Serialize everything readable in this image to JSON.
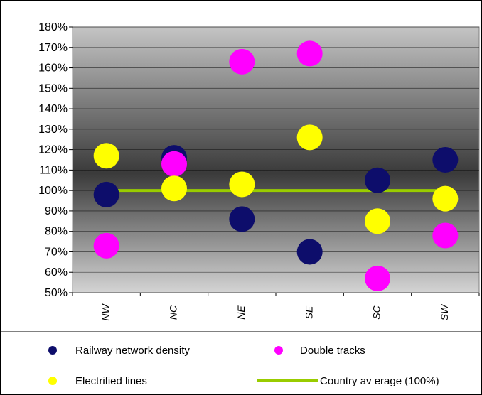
{
  "colors": {
    "railway": "#0d0d6b",
    "double": "#ff00ff",
    "electrified": "#ffff00",
    "average": "#99cc00"
  },
  "chart_data": {
    "type": "scatter",
    "title": "",
    "xlabel": "",
    "ylabel": "",
    "categories": [
      "NW",
      "NC",
      "NE",
      "SE",
      "SC",
      "SW"
    ],
    "y_tick_labels": [
      "50%",
      "60%",
      "70%",
      "80%",
      "90%",
      "100%",
      "110%",
      "120%",
      "130%",
      "140%",
      "150%",
      "160%",
      "170%",
      "180%"
    ],
    "ylim": [
      50,
      180
    ],
    "y_unit": "%",
    "grid": true,
    "legend_position": "bottom",
    "series": [
      {
        "name": "Railway network density",
        "color_key": "railway",
        "values": [
          98,
          116,
          86,
          70,
          105,
          115
        ]
      },
      {
        "name": "Double tracks",
        "color_key": "double",
        "values": [
          73,
          113,
          163,
          167,
          57,
          78
        ]
      },
      {
        "name": "Electrified lines",
        "color_key": "electrified",
        "values": [
          117,
          101,
          103,
          126,
          85,
          96
        ]
      }
    ],
    "reference_line": {
      "name": "Country average (100%)",
      "value": 100,
      "color_key": "average"
    }
  },
  "legend": {
    "railway": "Railway network density",
    "double": "Double tracks",
    "electrified": "Electrified lines",
    "average": "Country av erage (100%)"
  }
}
